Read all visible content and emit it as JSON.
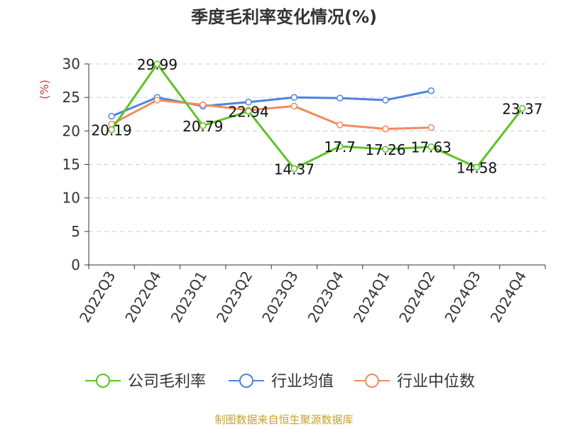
{
  "title": "季度毛利率变化情况(%)",
  "source": "制图数据来自恒生聚源数据库",
  "colors": {
    "company": "#5cc422",
    "industry_avg": "#4e83e0",
    "industry_median": "#f28b5a",
    "unit_label": "#e0383b",
    "source_text": "#c9a227",
    "grid": "#cccccc",
    "axis": "#333333",
    "title": "#333333"
  },
  "chart_data": {
    "type": "line",
    "title": "季度毛利率变化情况(%)",
    "ylabel": "(%)",
    "categories": [
      "2022Q3",
      "2022Q4",
      "2023Q1",
      "2023Q2",
      "2023Q3",
      "2023Q4",
      "2024Q1",
      "2024Q2",
      "2024Q3",
      "2024Q4"
    ],
    "ylim": [
      0,
      30
    ],
    "yticks": [
      0,
      5,
      10,
      15,
      20,
      25,
      30
    ],
    "grid": true,
    "legend_position": "bottom",
    "series": [
      {
        "name": "公司毛利率",
        "color": "#5cc422",
        "values": [
          20.19,
          29.99,
          20.79,
          22.94,
          14.37,
          17.7,
          17.26,
          17.63,
          14.58,
          23.37
        ],
        "labels": [
          "20.19",
          "29.99",
          "20.79",
          "22.94",
          "14.37",
          "17.7",
          "17.26",
          "17.63",
          "14.58",
          "23.37"
        ]
      },
      {
        "name": "行业均值",
        "color": "#4e83e0",
        "values": [
          22.2,
          25.0,
          23.7,
          24.3,
          25.0,
          24.9,
          24.6,
          26.0,
          null,
          null
        ]
      },
      {
        "name": "行业中位数",
        "color": "#f28b5a",
        "values": [
          21.0,
          24.6,
          23.9,
          23.1,
          23.7,
          20.9,
          20.3,
          20.5,
          null,
          null
        ]
      }
    ]
  }
}
